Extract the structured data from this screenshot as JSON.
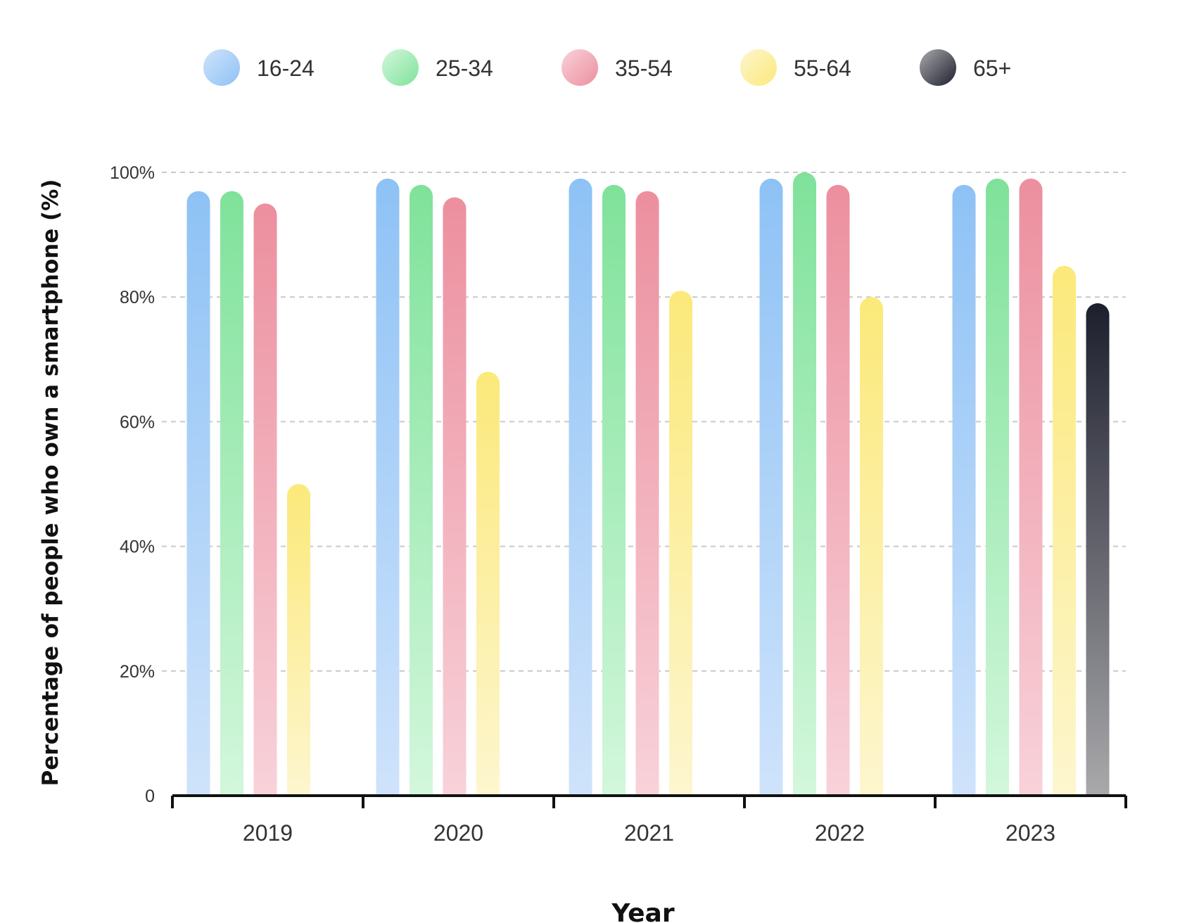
{
  "chart_data": {
    "type": "bar",
    "title": "",
    "xlabel": "Year",
    "ylabel": "Percentage of people who own a smartphone (%)",
    "ylim": [
      0,
      100
    ],
    "yticks": [
      "0",
      "20%",
      "40%",
      "60%",
      "80%",
      "100%"
    ],
    "grid": true,
    "legend_position": "top",
    "categories": [
      "2019",
      "2020",
      "2021",
      "2022",
      "2023"
    ],
    "series": [
      {
        "name": "16-24",
        "values": [
          97,
          99,
          99,
          99,
          98
        ],
        "color_top": "#8ec2f5",
        "color_bottom": "#cfe3fb"
      },
      {
        "name": "25-34",
        "values": [
          97,
          98,
          98,
          100,
          99
        ],
        "color_top": "#7fe29a",
        "color_bottom": "#d3f7dc"
      },
      {
        "name": "35-54",
        "values": [
          95,
          96,
          97,
          98,
          99
        ],
        "color_top": "#ec8f9e",
        "color_bottom": "#f8d2da"
      },
      {
        "name": "55-64",
        "values": [
          50,
          68,
          81,
          80,
          85
        ],
        "color_top": "#fbe97a",
        "color_bottom": "#fdf6cf"
      },
      {
        "name": "65+",
        "values": [
          null,
          null,
          null,
          null,
          79
        ],
        "color_top": "#1d1f2e",
        "color_bottom": "#a9a9ab"
      }
    ]
  }
}
